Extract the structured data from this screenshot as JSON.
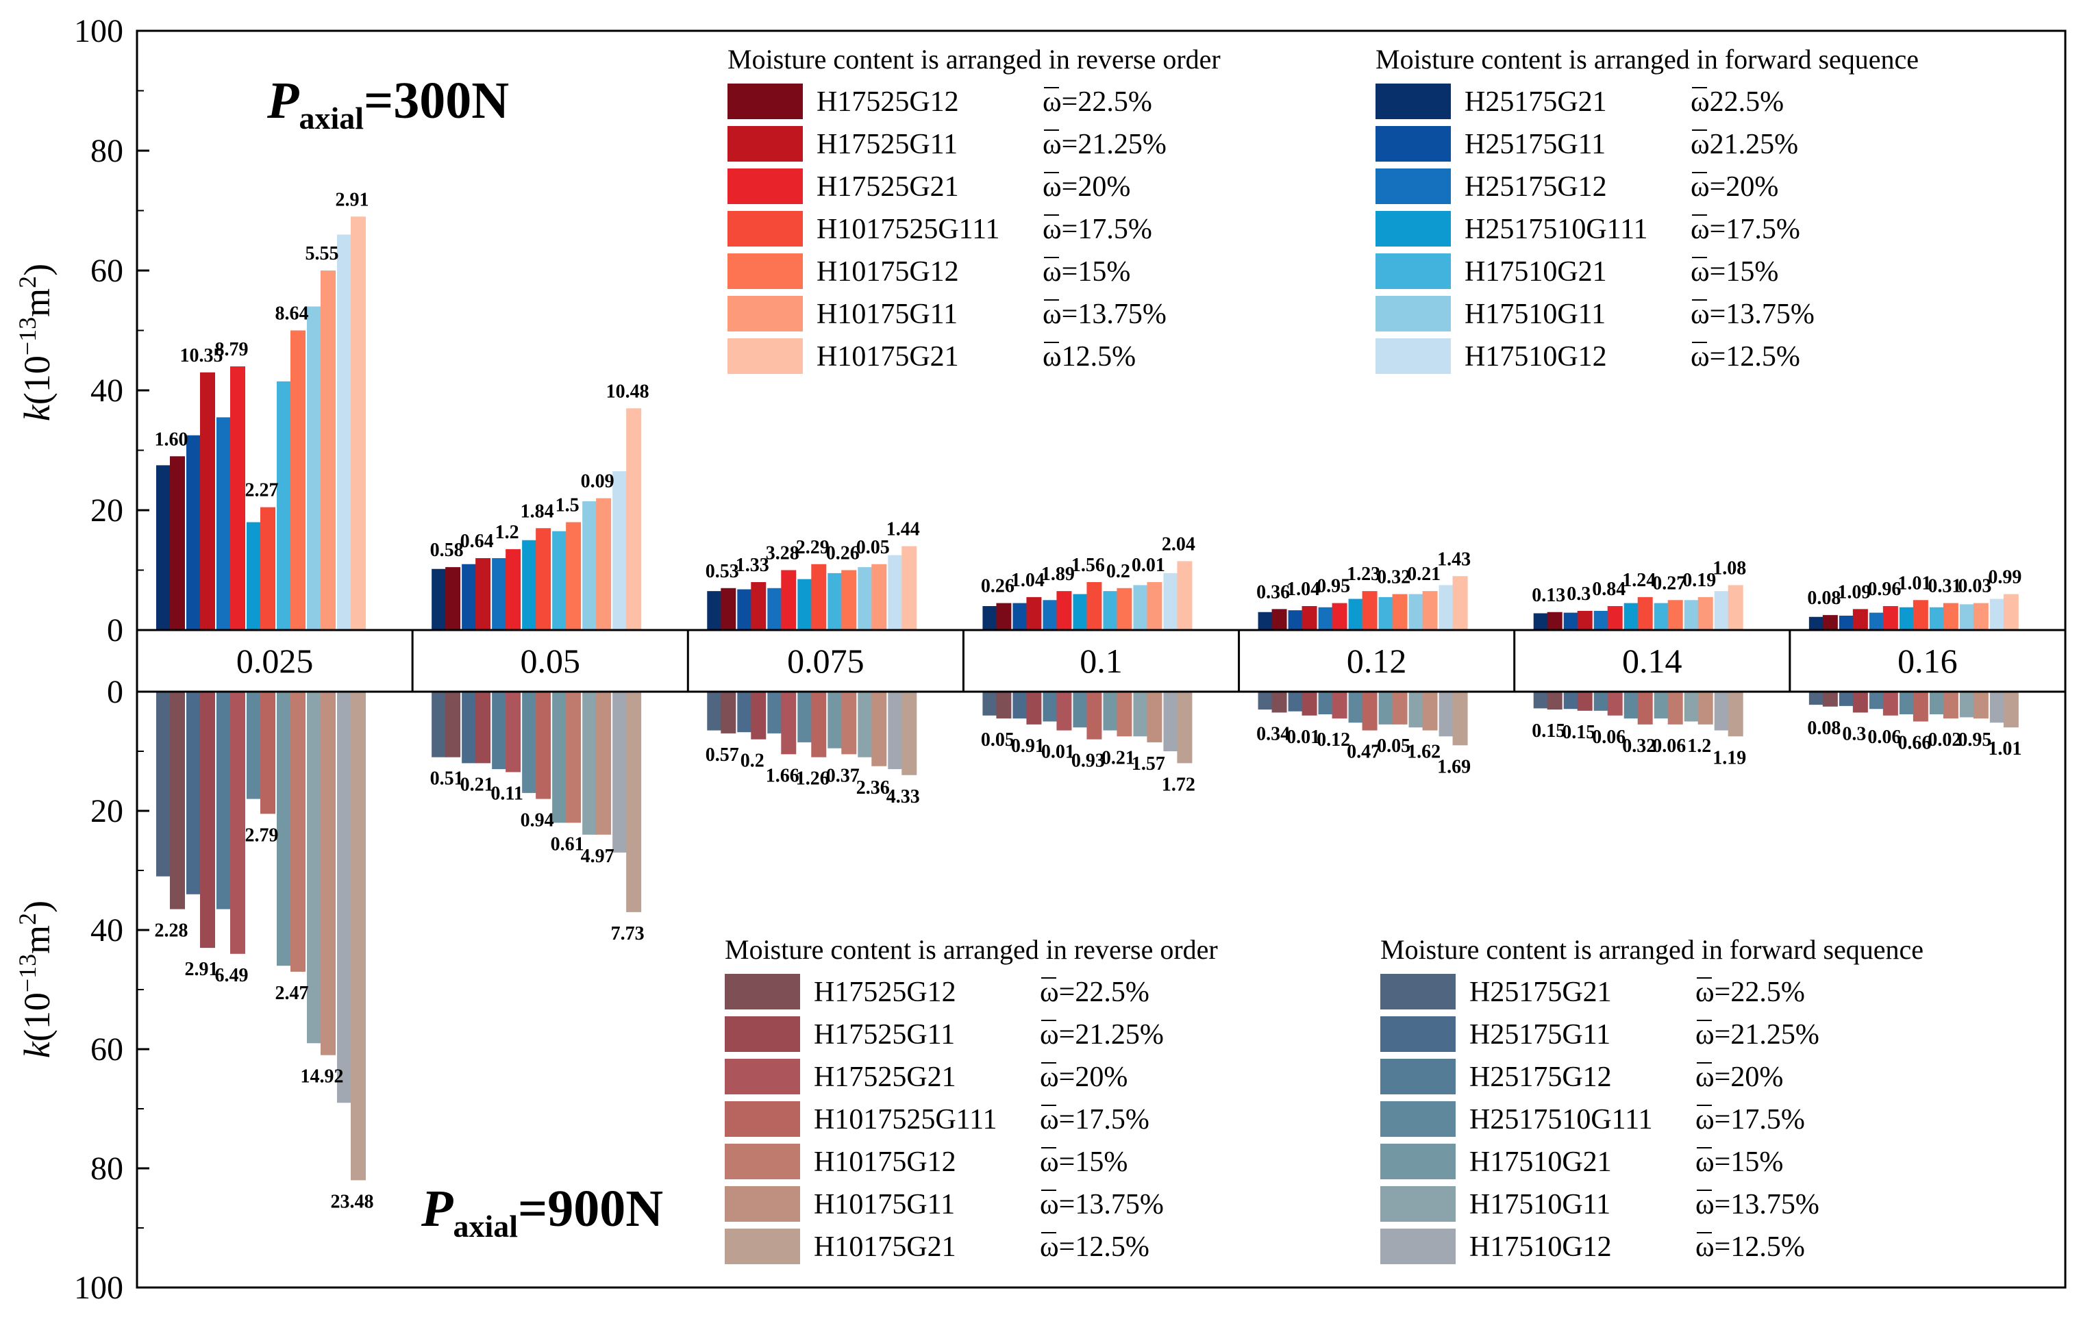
{
  "chart_data": {
    "type": "bar",
    "categories": [
      "0.025",
      "0.05",
      "0.075",
      "0.1",
      "0.12",
      "0.14",
      "0.16"
    ],
    "y_axis_label": "k(10−13m2)",
    "top_ylim": [
      0,
      100
    ],
    "bottom_ylim": [
      0,
      100
    ],
    "y_ticks": [
      "0",
      "20",
      "40",
      "60",
      "80",
      "100"
    ],
    "top_panel": {
      "title_main": "P",
      "title_sub": "axial",
      "title_rest": "=300N",
      "reverse_legend_title": "Moisture content is arranged in reverse order",
      "forward_legend_title": "Moisture content is arranged in forward sequence",
      "reverse_series": [
        {
          "name": "H17525G12",
          "moisture": "ω=22.5%",
          "color": "#7a0a17"
        },
        {
          "name": "H17525G11",
          "moisture": "ω=21.25%",
          "color": "#c0161f"
        },
        {
          "name": "H17525G21",
          "moisture": "ω=20%",
          "color": "#e8232a"
        },
        {
          "name": "H1017525G111",
          "moisture": "ω=17.5%",
          "color": "#f44a37"
        },
        {
          "name": "H10175G12",
          "moisture": "ω=15%",
          "color": "#fc7452"
        },
        {
          "name": "H10175G11",
          "moisture": "ω=13.75%",
          "color": "#fd9a7a"
        },
        {
          "name": "H10175G21",
          "moisture": "ω12.5%",
          "color": "#fdc0a6"
        }
      ],
      "forward_series": [
        {
          "name": "H25175G21",
          "moisture": "ω22.5%",
          "color": "#08306b"
        },
        {
          "name": "H25175G11",
          "moisture": "ω21.25%",
          "color": "#0a4fa0"
        },
        {
          "name": "H25175G12",
          "moisture": "ω=20%",
          "color": "#1570bd"
        },
        {
          "name": "H2517510G111",
          "moisture": "ω=17.5%",
          "color": "#0d9ad0"
        },
        {
          "name": "H17510G21",
          "moisture": "ω=15%",
          "color": "#42b3dc"
        },
        {
          "name": "H17510G11",
          "moisture": "ω=13.75%",
          "color": "#8ecce6"
        },
        {
          "name": "H17510G12",
          "moisture": "ω=12.5%",
          "color": "#c5dff2"
        }
      ],
      "values_reverse": [
        [
          29,
          43,
          44,
          20.5,
          50,
          60,
          69
        ],
        [
          10.5,
          12,
          13.5,
          17,
          18,
          22,
          37
        ],
        [
          7,
          8,
          10,
          11,
          10,
          11,
          14
        ],
        [
          4.5,
          5.5,
          6.5,
          8,
          7,
          8,
          11.5
        ],
        [
          3.5,
          4,
          4.5,
          6.5,
          6,
          6.5,
          9
        ],
        [
          3,
          3.2,
          4,
          5.5,
          5,
          5.5,
          7.5
        ],
        [
          2.5,
          3.5,
          4,
          5,
          4.5,
          4.5,
          6
        ]
      ],
      "values_forward": [
        [
          27.5,
          32.5,
          35.5,
          18,
          41.5,
          54,
          66
        ],
        [
          10.2,
          11,
          12,
          15,
          16.5,
          21.5,
          26.5
        ],
        [
          6.5,
          6.8,
          7,
          8.5,
          9.5,
          10.5,
          12.5
        ],
        [
          4,
          4.5,
          5,
          6,
          6.5,
          7.5,
          9.5
        ],
        [
          3,
          3.3,
          3.8,
          5.2,
          5.5,
          6,
          7.5
        ],
        [
          2.8,
          2.9,
          3.2,
          4.5,
          4.5,
          5,
          6.5
        ],
        [
          2.2,
          2.4,
          2.9,
          3.8,
          3.8,
          4.3,
          5.2
        ]
      ],
      "pair_labels": [
        [
          "1.60",
          "10.35",
          "8.79",
          "2.27",
          "8.64",
          "5.55",
          "2.91"
        ],
        [
          "0.58",
          "0.64",
          "1.2",
          "1.84",
          "1.5",
          "0.09",
          "10.48"
        ],
        [
          "0.53",
          "1.33",
          "3.28",
          "2.29",
          "0.26",
          "0.05",
          "1.44"
        ],
        [
          "0.26",
          "1.04",
          "1.89",
          "1.56",
          "0.2",
          "0.01",
          "2.04"
        ],
        [
          "0.36",
          "1.04",
          "0.95",
          "1.23",
          "0.32",
          "0.21",
          "1.43"
        ],
        [
          "0.13",
          "0.3",
          "0.84",
          "1.24",
          "0.27",
          "0.19",
          "1.08"
        ],
        [
          "0.08",
          "1.09",
          "0.96",
          "1.01",
          "0.31",
          "0.03",
          "0.99"
        ]
      ]
    },
    "bottom_panel": {
      "title_main": "P",
      "title_sub": "axial",
      "title_rest": "=900N",
      "reverse_legend_title": "Moisture content is arranged in reverse order",
      "forward_legend_title": "Moisture content is arranged in forward sequence",
      "reverse_series": [
        {
          "name": "H17525G12",
          "moisture": "ω=22.5%",
          "color": "#7e4f55"
        },
        {
          "name": "H17525G11",
          "moisture": "ω=21.25%",
          "color": "#9a4a50"
        },
        {
          "name": "H17525G21",
          "moisture": "ω=20%",
          "color": "#ac565b"
        },
        {
          "name": "H1017525G111",
          "moisture": "ω=17.5%",
          "color": "#b86560"
        },
        {
          "name": "H10175G12",
          "moisture": "ω=15%",
          "color": "#bf7c6e"
        },
        {
          "name": "H10175G11",
          "moisture": "ω=13.75%",
          "color": "#bf907f"
        },
        {
          "name": "H10175G21",
          "moisture": "ω=12.5%",
          "color": "#bca193"
        }
      ],
      "forward_series": [
        {
          "name": "H25175G21",
          "moisture": "ω=22.5%",
          "color": "#506580"
        },
        {
          "name": "H25175G11",
          "moisture": "ω=21.25%",
          "color": "#4a6b8c"
        },
        {
          "name": "H25175G12",
          "moisture": "ω=20%",
          "color": "#547c97"
        },
        {
          "name": "H2517510G111",
          "moisture": "ω=17.5%",
          "color": "#60889c"
        },
        {
          "name": "H17510G21",
          "moisture": "ω=15%",
          "color": "#7498a3"
        },
        {
          "name": "H17510G11",
          "moisture": "ω=13.75%",
          "color": "#8ba3aa"
        },
        {
          "name": "H17510G12",
          "moisture": "ω=12.5%",
          "color": "#a2a8b2"
        }
      ],
      "values_reverse": [
        [
          36.5,
          43,
          44,
          20.5,
          47,
          61,
          82
        ],
        [
          11,
          12,
          13.5,
          18,
          22,
          24,
          37
        ],
        [
          7,
          8,
          10.5,
          11,
          10.5,
          12.5,
          14
        ],
        [
          4.5,
          5.5,
          6.5,
          8,
          7.5,
          8.5,
          12
        ],
        [
          3.5,
          4,
          4.5,
          6.5,
          5.5,
          6.5,
          9
        ],
        [
          3,
          3.2,
          4,
          5.5,
          5.5,
          5.5,
          7.5
        ],
        [
          2.5,
          3.5,
          4,
          5,
          4.5,
          4.5,
          6
        ]
      ],
      "values_forward": [
        [
          31,
          34,
          36.5,
          18,
          46,
          59,
          69
        ],
        [
          11,
          12,
          13,
          17,
          22,
          24,
          27
        ],
        [
          6.5,
          6.8,
          7,
          8.5,
          9.5,
          11,
          13
        ],
        [
          4,
          4.5,
          5,
          6,
          6.5,
          7.5,
          10
        ],
        [
          3,
          3.3,
          3.8,
          5.2,
          5.5,
          6,
          7.5
        ],
        [
          2.8,
          2.9,
          3.2,
          4.5,
          4.5,
          5,
          6.5
        ],
        [
          2.2,
          2.4,
          2.9,
          3.8,
          3.8,
          4.3,
          5.2
        ]
      ],
      "pair_labels": [
        [
          "2.28",
          "2.91",
          "6.49",
          "2.79",
          "2.47",
          "14.92",
          "23.48"
        ],
        [
          "0.51",
          "0.21",
          "0.11",
          "0.94",
          "0.61",
          "4.97",
          "7.73"
        ],
        [
          "0.57",
          "0.2",
          "1.66",
          "1.26",
          "0.37",
          "2.36",
          "4.33"
        ],
        [
          "0.05",
          "0.91",
          "0.01",
          "0.93",
          "0.21",
          "1.57",
          "1.72"
        ],
        [
          "0.34",
          "0.01",
          "0.12",
          "0.47",
          "0.05",
          "1.62",
          "1.69"
        ],
        [
          "0.15",
          "0.15",
          "0.06",
          "0.32",
          "0.06",
          "1.2",
          "1.19"
        ],
        [
          "0.08",
          "0.3",
          "0.06",
          "0.66",
          "0.02",
          "0.95",
          "1.01"
        ]
      ]
    }
  }
}
